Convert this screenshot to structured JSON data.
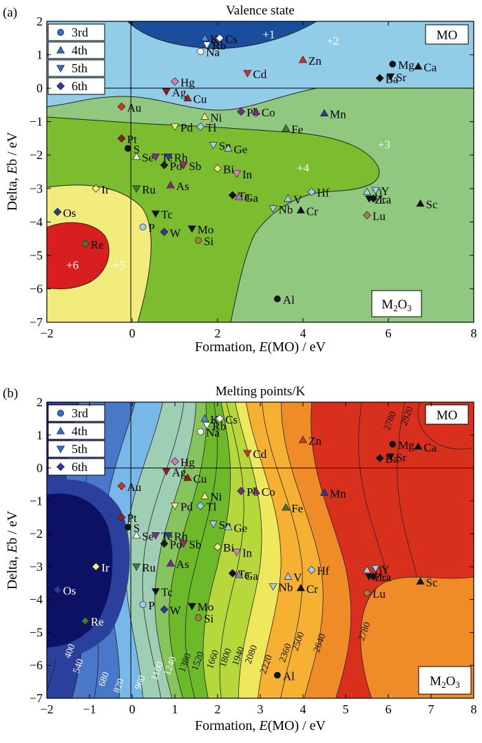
{
  "chart_data": [
    {
      "type": "scatter",
      "panel_label": "(a)",
      "title": "Valence state",
      "xlabel_parts": [
        "Formation, ",
        "E",
        "(MO) / eV"
      ],
      "ylabel_parts": [
        "Delta, ",
        "E",
        "b / eV"
      ],
      "xlim": [
        -2,
        8
      ],
      "ylim": [
        -7,
        2
      ],
      "xticks": [
        "−2",
        "0",
        "2",
        "4",
        "6",
        "8"
      ],
      "yticks": [
        "−7",
        "−6",
        "−5",
        "−4",
        "−3",
        "−2",
        "−1",
        "0",
        "1",
        "2"
      ],
      "grid": false,
      "legend_position": "top-left",
      "legend": [
        "3rd",
        "4th",
        "5th",
        "6th"
      ],
      "region_labels": [
        {
          "text": "+1",
          "x": 3.2,
          "y": 1.5
        },
        {
          "text": "+2",
          "x": 4.7,
          "y": 1.3
        },
        {
          "text": "+3",
          "x": 5.9,
          "y": -1.8
        },
        {
          "text": "+4",
          "x": 4.0,
          "y": -2.5
        },
        {
          "text": "+5",
          "x": -0.3,
          "y": -5.4
        },
        {
          "text": "+6",
          "x": -1.4,
          "y": -5.4
        }
      ],
      "corner_labels": {
        "top": "MO",
        "bottom": "M2O3"
      },
      "region_colors": {
        "plus1": "#1a4e9c",
        "plus2": "#92cde8",
        "plus3": "#90c880",
        "plus4": "#7bbd2e",
        "plus5": "#f2ec7c",
        "plus6": "#d81e1e"
      }
    },
    {
      "type": "scatter",
      "panel_label": "(b)",
      "title": "Melting points/K",
      "xlabel_parts": [
        "Formation, ",
        "E",
        "(MO) / eV"
      ],
      "ylabel_parts": [
        "Delta, ",
        "E",
        "b / eV"
      ],
      "xlim": [
        -2,
        8
      ],
      "ylim": [
        -7,
        2
      ],
      "xticks": [
        "−2",
        "−1",
        "0",
        "1",
        "2",
        "3",
        "4",
        "5",
        "6",
        "7",
        "8"
      ],
      "yticks": [
        "−7",
        "−6",
        "−5",
        "−4",
        "−3",
        "−2",
        "−1",
        "0",
        "1",
        "2"
      ],
      "grid": false,
      "legend_position": "top-left",
      "legend": [
        "3rd",
        "4th",
        "5th",
        "6th"
      ],
      "corner_labels": {
        "top": "MO",
        "bottom": "M2O3"
      },
      "contour_levels": [
        400,
        540,
        680,
        820,
        960,
        1100,
        1240,
        1380,
        1520,
        1660,
        1800,
        1940,
        2080,
        2220,
        2360,
        2500,
        2640,
        2780,
        2920
      ],
      "contour_labels": [
        {
          "text": "400",
          "x": -1.4,
          "y": -5.6
        },
        {
          "text": "540",
          "x": -1.2,
          "y": -6.05
        },
        {
          "text": "680",
          "x": -0.6,
          "y": -6.45
        },
        {
          "text": "820",
          "x": -0.25,
          "y": -6.65
        },
        {
          "text": "960",
          "x": 0.25,
          "y": -6.55
        },
        {
          "text": "1100",
          "x": 0.65,
          "y": -6.2
        },
        {
          "text": "1240",
          "x": 0.95,
          "y": -6.05
        },
        {
          "text": "1380",
          "x": 1.3,
          "y": -5.95
        },
        {
          "text": "1520",
          "x": 1.6,
          "y": -5.9
        },
        {
          "text": "1660",
          "x": 1.95,
          "y": -5.85
        },
        {
          "text": "1800",
          "x": 2.25,
          "y": -5.8
        },
        {
          "text": "1940",
          "x": 2.55,
          "y": -5.75
        },
        {
          "text": "2080",
          "x": 2.85,
          "y": -5.7
        },
        {
          "text": "2220",
          "x": 3.2,
          "y": -6.0
        },
        {
          "text": "2360",
          "x": 3.65,
          "y": -5.65
        },
        {
          "text": "2500",
          "x": 3.95,
          "y": -5.3
        },
        {
          "text": "2640",
          "x": 4.45,
          "y": -5.35
        },
        {
          "text": "2780",
          "x": 5.5,
          "y": -5.0
        },
        {
          "text": "2780",
          "x": 6.1,
          "y": 1.4
        },
        {
          "text": "2920",
          "x": 6.5,
          "y": 1.55
        }
      ],
      "colormap": [
        "#0c1164",
        "#2b3f9c",
        "#4a78c8",
        "#78b8e8",
        "#9ecfb5",
        "#88c45e",
        "#6cb92a",
        "#b7d83a",
        "#f0e85c",
        "#f7b132",
        "#ef8c28",
        "#d8301c"
      ]
    }
  ],
  "elements": [
    {
      "name": "K",
      "x": 1.7,
      "y": 1.5,
      "row": "4th"
    },
    {
      "name": "Rb",
      "x": 1.75,
      "y": 1.3,
      "row": "5th"
    },
    {
      "name": "Cs",
      "x": 2.05,
      "y": 1.5,
      "row": "6th"
    },
    {
      "name": "Na",
      "x": 1.6,
      "y": 1.1,
      "row": "3rd"
    },
    {
      "name": "Zn",
      "x": 4.0,
      "y": 0.85,
      "row": "4th"
    },
    {
      "name": "Cd",
      "x": 2.7,
      "y": 0.45,
      "row": "5th"
    },
    {
      "name": "Mg",
      "x": 6.1,
      "y": 0.72,
      "row": "3rd"
    },
    {
      "name": "Ca",
      "x": 6.7,
      "y": 0.65,
      "row": "4th"
    },
    {
      "name": "Sr",
      "x": 6.05,
      "y": 0.35,
      "row": "5th"
    },
    {
      "name": "Ba",
      "x": 5.8,
      "y": 0.3,
      "row": "6th"
    },
    {
      "name": "Hg",
      "x": 1.0,
      "y": 0.2,
      "row": "6th"
    },
    {
      "name": "Ag",
      "x": 0.8,
      "y": -0.1,
      "row": "5th"
    },
    {
      "name": "Cu",
      "x": 1.3,
      "y": -0.3,
      "row": "4th"
    },
    {
      "name": "Au",
      "x": -0.25,
      "y": -0.55,
      "row": "6th"
    },
    {
      "name": "Ni",
      "x": 1.7,
      "y": -0.85,
      "row": "4th"
    },
    {
      "name": "Pd",
      "x": 1.0,
      "y": -1.15,
      "row": "5th"
    },
    {
      "name": "Tl",
      "x": 1.6,
      "y": -1.15,
      "row": "6th"
    },
    {
      "name": "Pb",
      "x": 2.55,
      "y": -0.7,
      "row": "6th"
    },
    {
      "name": "Co",
      "x": 2.9,
      "y": -0.7,
      "row": "4th"
    },
    {
      "name": "Mn",
      "x": 4.5,
      "y": -0.75,
      "row": "4th"
    },
    {
      "name": "Fe",
      "x": 3.6,
      "y": -1.2,
      "row": "4th"
    },
    {
      "name": "Pt",
      "x": -0.25,
      "y": -1.5,
      "row": "6th"
    },
    {
      "name": "S",
      "x": -0.1,
      "y": -1.8,
      "row": "3rd"
    },
    {
      "name": "Se",
      "x": 0.1,
      "y": -2.05,
      "row": "4th"
    },
    {
      "name": "Te",
      "x": 0.55,
      "y": -2.05,
      "row": "5th"
    },
    {
      "name": "Rh",
      "x": 0.85,
      "y": -2.05,
      "row": "5th"
    },
    {
      "name": "Po",
      "x": 0.75,
      "y": -2.3,
      "row": "6th"
    },
    {
      "name": "Sb",
      "x": 1.2,
      "y": -2.3,
      "row": "5th"
    },
    {
      "name": "Sn",
      "x": 1.9,
      "y": -1.7,
      "row": "5th"
    },
    {
      "name": "Ge",
      "x": 2.25,
      "y": -1.8,
      "row": "4th"
    },
    {
      "name": "Bi",
      "x": 2.0,
      "y": -2.4,
      "row": "6th"
    },
    {
      "name": "In",
      "x": 2.45,
      "y": -2.55,
      "row": "5th"
    },
    {
      "name": "Ir",
      "x": -0.85,
      "y": -3.0,
      "row": "6th"
    },
    {
      "name": "Ru",
      "x": 0.1,
      "y": -3.0,
      "row": "5th"
    },
    {
      "name": "As",
      "x": 0.9,
      "y": -2.9,
      "row": "4th"
    },
    {
      "name": "Ta",
      "x": 2.35,
      "y": -3.2,
      "row": "6th"
    },
    {
      "name": "Ga",
      "x": 2.5,
      "y": -3.25,
      "row": "4th"
    },
    {
      "name": "V",
      "x": 3.65,
      "y": -3.3,
      "row": "4th"
    },
    {
      "name": "Hf",
      "x": 4.2,
      "y": -3.1,
      "row": "6th"
    },
    {
      "name": "Ti",
      "x": 5.5,
      "y": -3.1,
      "row": "4th"
    },
    {
      "name": "Y",
      "x": 5.7,
      "y": -3.05,
      "row": "5th"
    },
    {
      "name": "Zr",
      "x": 5.55,
      "y": -3.3,
      "row": "5th"
    },
    {
      "name": "La",
      "x": 5.65,
      "y": -3.3,
      "row": "6th"
    },
    {
      "name": "Sc",
      "x": 6.75,
      "y": -3.45,
      "row": "4th"
    },
    {
      "name": "Nb",
      "x": 3.3,
      "y": -3.6,
      "row": "5th"
    },
    {
      "name": "Cr",
      "x": 3.95,
      "y": -3.65,
      "row": "4th"
    },
    {
      "name": "Lu",
      "x": 5.5,
      "y": -3.8,
      "row": "6th"
    },
    {
      "name": "Os",
      "x": -1.75,
      "y": -3.7,
      "row": "6th"
    },
    {
      "name": "Tc",
      "x": 0.55,
      "y": -3.75,
      "row": "5th"
    },
    {
      "name": "P",
      "x": 0.25,
      "y": -4.15,
      "row": "3rd"
    },
    {
      "name": "W",
      "x": 0.75,
      "y": -4.3,
      "row": "6th"
    },
    {
      "name": "Mo",
      "x": 1.4,
      "y": -4.2,
      "row": "5th"
    },
    {
      "name": "Si",
      "x": 1.55,
      "y": -4.55,
      "row": "3rd"
    },
    {
      "name": "Re",
      "x": -1.1,
      "y": -4.65,
      "row": "6th"
    },
    {
      "name": "Al",
      "x": 3.4,
      "y": -6.3,
      "row": "3rd"
    }
  ],
  "marker_colors_a": {
    "K": "#4a8fd8",
    "Rb": "#ffffff",
    "Cs": "#ffffff",
    "Na": "#ffffff",
    "Zn": "#e02b2b",
    "Cd": "#e02b2b",
    "Mg": "#111111",
    "Ca": "#111111",
    "Sr": "#111111",
    "Ba": "#111111",
    "Hg": "#e07ab8",
    "Ag": "#a01818",
    "Cu": "#a01818",
    "Au": "#e02b2b",
    "Ni": "#f2ec7c",
    "Pd": "#f2ec7c",
    "Tl": "#9ecff0",
    "Pb": "#7a2a8a",
    "Co": "#7a2a8a",
    "Mn": "#2a3a9c",
    "Fe": "#3a7a3a",
    "Pt": "#a01818",
    "S": "#111111",
    "Se": "#f2f2f2",
    "Te": "#8a2a8a",
    "Rh": "#2a3a9c",
    "Po": "#1a1a1a",
    "Sb": "#a0208a",
    "Sn": "#9ecff0",
    "Ge": "#9ecff0",
    "Bi": "#f2ec7c",
    "In": "#e080d0",
    "Ir": "#f2ec7c",
    "Ru": "#3a7a3a",
    "As": "#7a2a8a",
    "Ta": "#111111",
    "Ga": "#b070d0",
    "V": "#9ecff0",
    "Hf": "#9ecff0",
    "Ti": "#9ecff0",
    "Y": "#9ecff0",
    "Zr": "#111111",
    "La": "#111111",
    "Sc": "#111111",
    "Nb": "#9ecff0",
    "Cr": "#111111",
    "Lu": "#a08040",
    "Os": "#2a3a9c",
    "Tc": "#111111",
    "P": "#9ecff0",
    "W": "#2a3a9c",
    "Mo": "#111111",
    "Si": "#a08040",
    "Re": "#3a7a3a",
    "Al": "#111111"
  }
}
